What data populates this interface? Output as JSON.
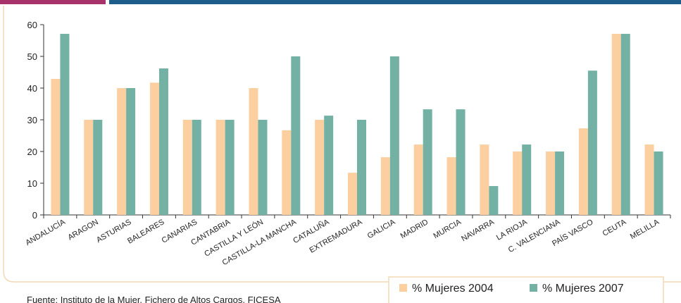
{
  "chart_data": {
    "type": "bar",
    "categories": [
      "ANDALUCÍA",
      "ARAGON",
      "ASTURIAS",
      "BALEARES",
      "CANARIAS",
      "CANTABRIA",
      "CASTILLA Y LEÓN",
      "CASTILLA-LA MANCHA",
      "CATALUÑA",
      "EXTREMADURA",
      "GALICIA",
      "MADRID",
      "MURCIA",
      "NAVARRA",
      "LA RIOJA",
      "C. VALENCIANA",
      "PAÍS VASCO",
      "CEUTA",
      "MELILLA"
    ],
    "series": [
      {
        "name": "% Mujeres 2004",
        "color": "#fbcf9f",
        "values": [
          42.9,
          30,
          40,
          41.7,
          30,
          30,
          40,
          26.7,
          30,
          13.3,
          18.2,
          22.2,
          18.2,
          22.2,
          20,
          20,
          27.3,
          57.1,
          22.2
        ]
      },
      {
        "name": "% Mujeres 2007",
        "color": "#72b1a4",
        "values": [
          57.1,
          30,
          40,
          46.2,
          30,
          30,
          30,
          50,
          31.3,
          30,
          50,
          33.3,
          33.3,
          9.1,
          22.2,
          20,
          45.5,
          57.1,
          20
        ]
      }
    ],
    "ylim": [
      0,
      60
    ],
    "yticks": [
      0,
      10,
      20,
      30,
      40,
      50,
      60
    ],
    "source": "Fuente: Instituto de la Mujer. Fichero de Altos Cargos. FICESA"
  }
}
